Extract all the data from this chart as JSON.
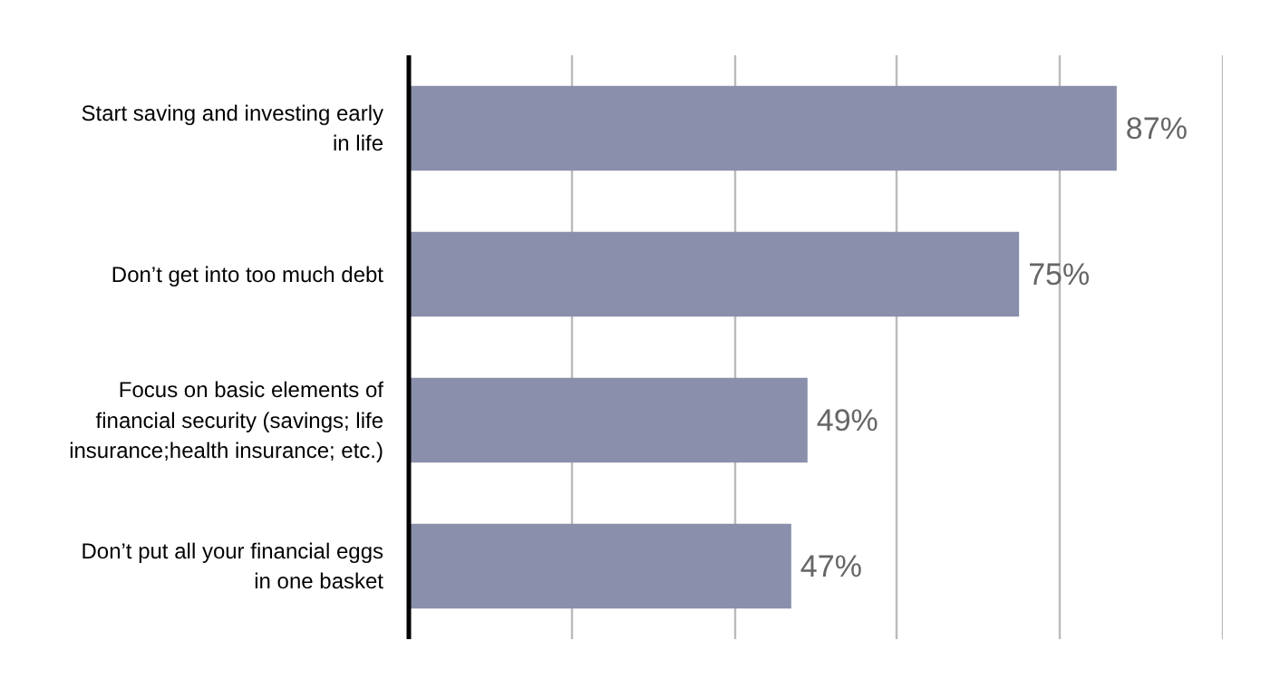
{
  "chart_data": {
    "type": "bar",
    "orientation": "horizontal",
    "categories": [
      "Start saving and investing early in life",
      "Don’t get into too much debt",
      "Focus on basic elements of financial security (savings; life insurance;health insurance; etc.)",
      "Don’t put all your financial eggs in one basket"
    ],
    "values": [
      87,
      75,
      49,
      47
    ],
    "value_labels": [
      "87%",
      "75%",
      "49%",
      "47%"
    ],
    "color": "#8a8fab",
    "tick_labels": "y",
    "grid": "x"
  }
}
